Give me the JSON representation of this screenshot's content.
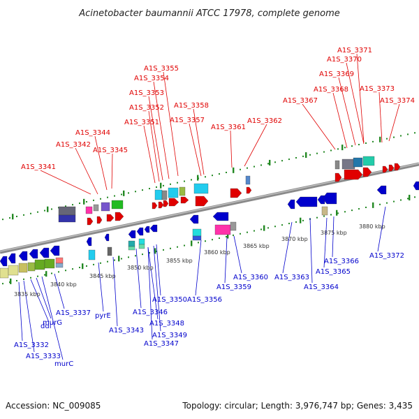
{
  "title": "Acinetobacter baumannii ATCC 17978, complete genome",
  "footer": {
    "accession": "Accession: NC_009085",
    "summary": "Topology: circular; Length: 3,976,747 bp; Genes: 3,435"
  },
  "colors": {
    "forward": "#e00000",
    "reverse": "#0000cc",
    "backbone": "#8a8a8a",
    "tick": "#228822"
  },
  "kbp_ticks": [
    "3835 kbp",
    "3840 kbp",
    "3845 kbp",
    "3850 kbp",
    "3855 kbp",
    "3860 kbp",
    "3865 kbp",
    "3870 kbp",
    "3875 kbp",
    "3880 kbp"
  ],
  "top_labels": [
    "A1S_3341",
    "A1S_3342",
    "A1S_3344",
    "A1S_3345",
    "A1S_3351",
    "A1S_3352",
    "A1S_3353",
    "A1S_3354",
    "A1S_3355",
    "A1S_3357",
    "A1S_3358",
    "A1S_3361",
    "A1S_3362",
    "A1S_3367",
    "A1S_3368",
    "A1S_3369",
    "A1S_3370",
    "A1S_3371",
    "A1S_3373",
    "A1S_3374"
  ],
  "bottom_labels": [
    "A1S_3332",
    "A1S_3333",
    "ddl",
    "murG",
    "murC",
    "A1S_3337",
    "pyrE",
    "A1S_3343",
    "A1S_3346",
    "A1S_3347",
    "A1S_3348",
    "A1S_3349",
    "A1S_3350",
    "A1S_3356",
    "A1S_3359",
    "A1S_3360",
    "A1S_3363",
    "A1S_3364",
    "A1S_3365",
    "A1S_3366",
    "A1S_3372"
  ]
}
